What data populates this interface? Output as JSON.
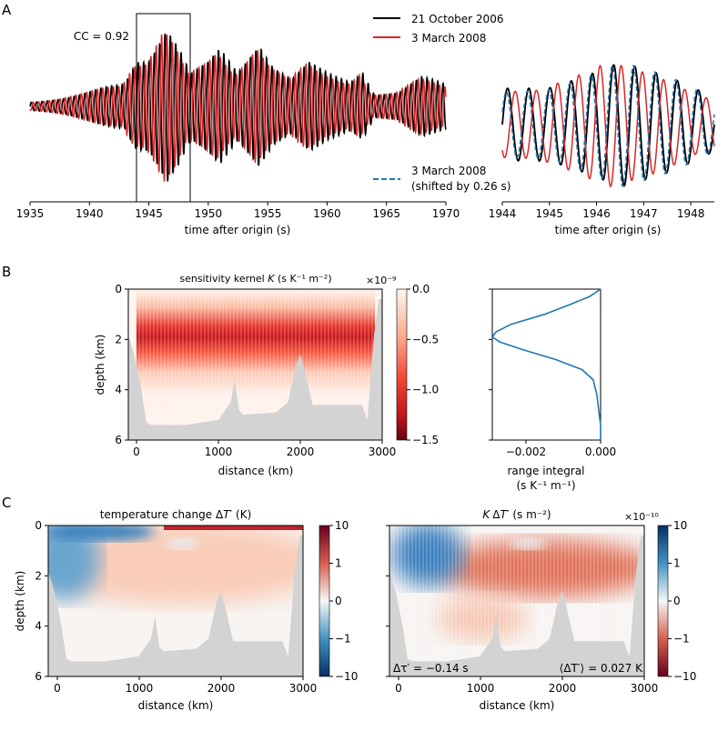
{
  "panel_labels": [
    "A",
    "B",
    "C"
  ],
  "chart_data": [
    {
      "id": "A-main",
      "type": "line",
      "xlabel": "time after origin (s)",
      "xlim": [
        1935,
        1970
      ],
      "xticks": [
        "1935",
        "1940",
        "1945",
        "1950",
        "1955",
        "1960",
        "1965",
        "1970"
      ],
      "annotation": "CC = 0.92",
      "highlight_window": [
        1944,
        1948.5
      ],
      "legend": [
        "21 October 2006",
        "3 March 2008"
      ],
      "series": [
        {
          "name": "21 October 2006",
          "color": "#000000",
          "period_s": 0.45,
          "envelope_t": [
            1935,
            1938,
            1940,
            1943,
            1944,
            1945,
            1946.5,
            1947.5,
            1948.5,
            1950,
            1951,
            1952.5,
            1954.3,
            1955.5,
            1957,
            1958.5,
            1960,
            1962,
            1963,
            1964,
            1966,
            1968,
            1970
          ],
          "envelope_a": [
            0.05,
            0.1,
            0.15,
            0.25,
            0.55,
            0.6,
            1.0,
            0.7,
            0.35,
            0.45,
            0.6,
            0.4,
            0.82,
            0.5,
            0.3,
            0.45,
            0.35,
            0.3,
            0.45,
            0.15,
            0.15,
            0.3,
            0.25
          ]
        },
        {
          "name": "3 March 2008",
          "color": "#d62728",
          "shift_s": 0.26
        }
      ]
    },
    {
      "id": "A-zoom",
      "type": "line",
      "xlabel": "time after origin (s)",
      "xlim": [
        1944,
        1948.5
      ],
      "xticks": [
        "1944",
        "1945",
        "1946",
        "1947",
        "1948"
      ],
      "legend": [
        "3 March 2008",
        "(shifted by 0.26 s)"
      ],
      "series": [
        {
          "name": "21 October 2006",
          "color": "#000000"
        },
        {
          "name": "3 March 2008",
          "color": "#d62728"
        },
        {
          "name": "3 March 2008 (shifted by 0.26 s)",
          "color": "#1f77b4",
          "style": "dashed"
        }
      ]
    },
    {
      "id": "B-kernel",
      "type": "heatmap",
      "title": "sensitivity kernel K (s K⁻¹ m⁻²)",
      "title_main": "sensitivity kernel ",
      "title_var": "K",
      "title_unit": " (s K⁻¹ m⁻²)",
      "xlabel": "distance (km)",
      "ylabel": "depth (km)",
      "xticks": [
        "0",
        "1000",
        "2000",
        "3000"
      ],
      "yticks": [
        "0",
        "2",
        "4",
        "6"
      ],
      "colorbar": {
        "ticks": [
          "0.0",
          "−0.5",
          "−1.0",
          "−1.5"
        ],
        "range": [
          -1.5,
          0
        ],
        "scale": "×10⁻⁹",
        "colormap": "Reds_r"
      },
      "peak_depth_km": 1.9
    },
    {
      "id": "B-range-integral",
      "type": "line",
      "xlabel": "range integral",
      "xlabel2": "(s K⁻¹ m⁻¹)",
      "xticks": [
        "−0.002",
        "0.000"
      ],
      "xlim": [
        -0.0029,
        0
      ],
      "color": "#1f77b4",
      "depth_km": [
        0,
        0.3,
        0.6,
        1.0,
        1.4,
        1.7,
        1.9,
        2.1,
        2.4,
        2.8,
        3.2,
        3.6,
        4.2,
        4.8,
        5.4,
        6
      ],
      "values": [
        0,
        -0.0003,
        -0.0008,
        -0.0015,
        -0.0024,
        -0.0028,
        -0.0029,
        -0.0027,
        -0.0021,
        -0.0012,
        -0.0005,
        -0.0002,
        -0.0001,
        -5e-05,
        0,
        0
      ]
    },
    {
      "id": "C-temperature",
      "type": "heatmap",
      "title_main": "temperature change Δ",
      "title_var": "T′",
      "title_unit": " (K)",
      "xlabel": "distance (km)",
      "ylabel": "depth (km)",
      "xticks": [
        "0",
        "1000",
        "2000",
        "3000"
      ],
      "yticks": [
        "0",
        "2",
        "4",
        "6"
      ],
      "colorbar": {
        "ticks": [
          "10",
          "1",
          "0",
          "−1",
          "−10"
        ],
        "scale_type": "symlog",
        "colormap": "RdBu_r"
      }
    },
    {
      "id": "C-product",
      "type": "heatmap",
      "title_var": "K",
      "title_main": "Δ",
      "title_var2": "T′",
      "title_unit": " (s m⁻²)",
      "xlabel": "distance (km)",
      "xticks": [
        "0",
        "1000",
        "2000",
        "3000"
      ],
      "colorbar": {
        "ticks": [
          "10",
          "1",
          "0",
          "−1",
          "−10"
        ],
        "scale": "×10⁻¹⁰",
        "scale_type": "symlog",
        "colormap": "RdBu"
      },
      "annotations": [
        "Δτ′ = −0.14 s",
        "⟨ΔT′⟩ = 0.027 K"
      ]
    }
  ],
  "bathymetry": {
    "distance_km": [
      -100,
      -100,
      -20,
      60,
      120,
      180,
      600,
      1000,
      1150,
      1200,
      1250,
      1300,
      1700,
      1850,
      1950,
      2000,
      2050,
      2150,
      2500,
      2750,
      2820,
      2900,
      2960,
      3000,
      3000
    ],
    "depth_km": [
      6,
      1.8,
      2.7,
      4.0,
      5.3,
      5.4,
      5.4,
      5.2,
      4.5,
      3.6,
      4.8,
      5.0,
      4.9,
      4.5,
      3.0,
      2.6,
      3.2,
      4.6,
      4.6,
      4.6,
      5.2,
      1.8,
      0.4,
      0.4,
      6
    ]
  }
}
